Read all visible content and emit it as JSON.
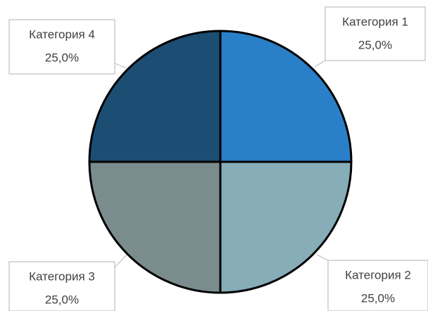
{
  "chart_data": {
    "type": "pie",
    "categories": [
      "Категория 1",
      "Категория 2",
      "Категория 3",
      "Категория 4"
    ],
    "values": [
      25,
      25,
      25,
      25
    ],
    "value_labels": [
      "25,0%",
      "25,0%",
      "25,0%",
      "25,0%"
    ],
    "colors": [
      "#2a80c8",
      "#87adb8",
      "#7b8c8e",
      "#1c4e74"
    ]
  }
}
